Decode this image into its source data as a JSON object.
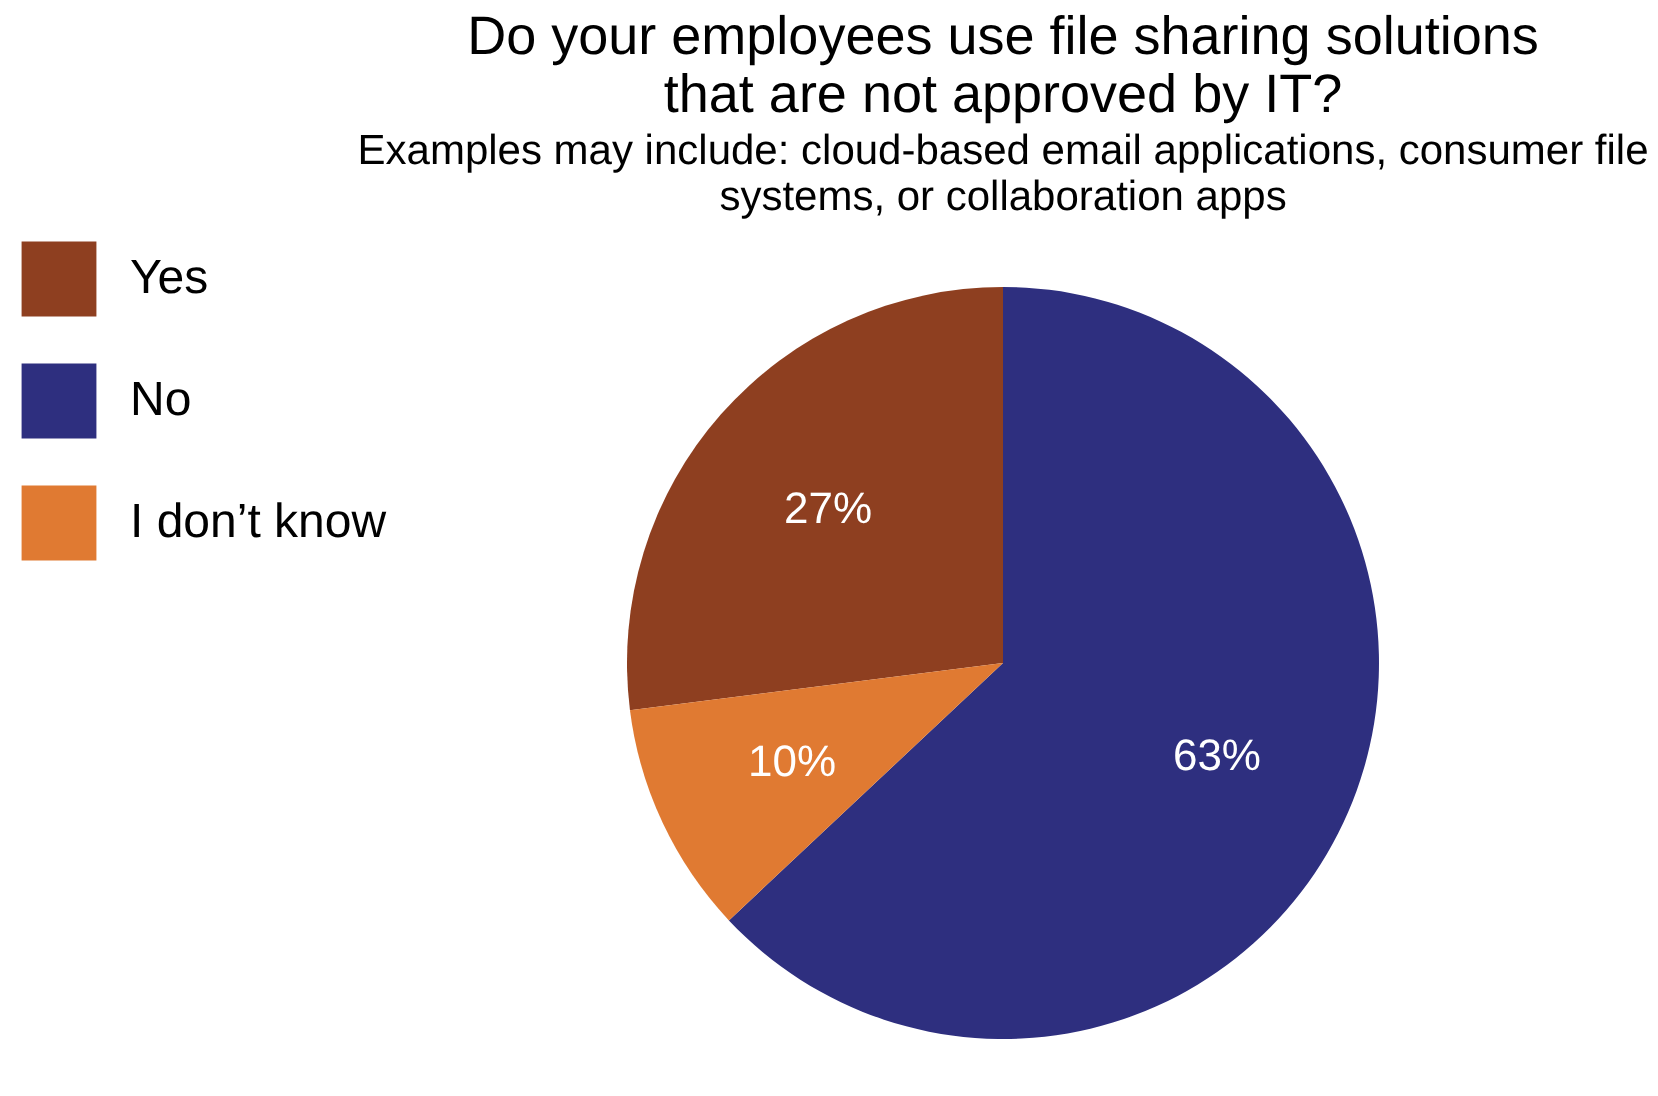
{
  "chart_data": {
    "type": "pie",
    "title": [
      "Do your employees use file sharing solutions",
      "that are not approved by IT?"
    ],
    "subtitle": [
      "Examples may include: cloud-based email applications, consumer file",
      "systems, or collaboration apps"
    ],
    "categories": [
      "Yes",
      "No",
      "I don’t know"
    ],
    "values": [
      27,
      63,
      10
    ],
    "colors": [
      "#8e3f20",
      "#2e2f7f",
      "#e07a32"
    ],
    "value_labels": [
      "27%",
      "63%",
      "10%"
    ],
    "legend": "left"
  }
}
